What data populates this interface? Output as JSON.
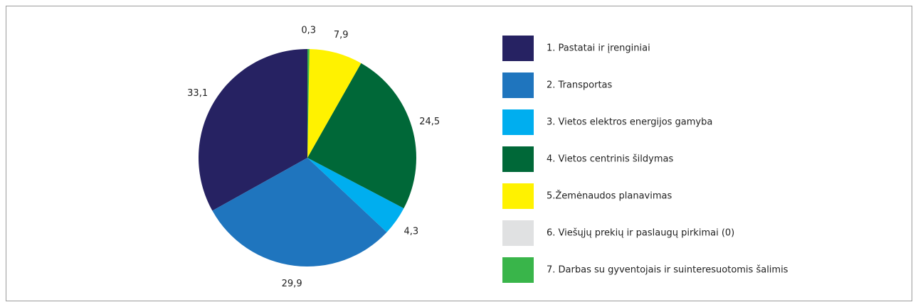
{
  "chart_data": {
    "type": "pie",
    "categories": [
      "1. Pastatai ir įrenginiai",
      "2. Transportas",
      "3. Vietos elektros energijos gamyba",
      "4. Vietos centrinis šildymas",
      "5.Žemėnaudos planavimas",
      "6. Viešųjų prekių ir paslaugų pirkimai (0)",
      "7. Darbas su gyventojais ir suinteresuotomis šalimis"
    ],
    "values": [
      33.1,
      29.9,
      4.3,
      24.5,
      7.9,
      0,
      0.3
    ],
    "value_labels": [
      "33,1",
      "29,9",
      "4,3",
      "24,5",
      "7,9",
      null,
      "0,3"
    ],
    "colors": [
      "#262262",
      "#1f75be",
      "#00aeef",
      "#006838",
      "#fff200",
      "#e0e1e2",
      "#39b54a"
    ],
    "legend": "right"
  }
}
